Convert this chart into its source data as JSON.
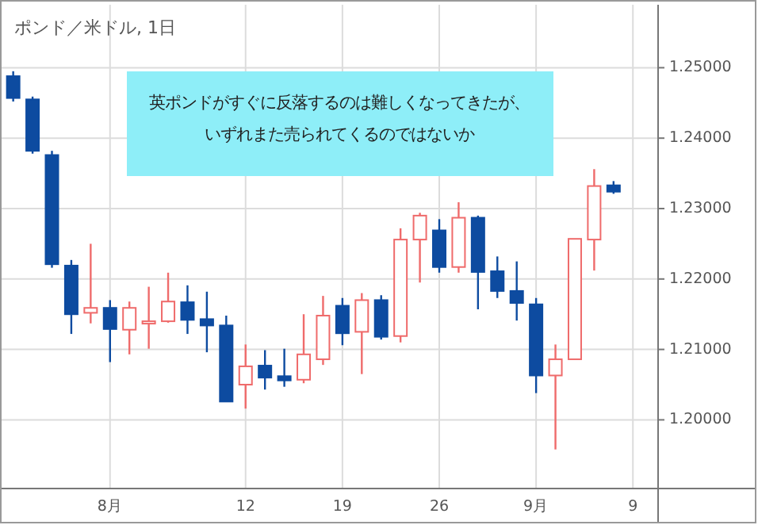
{
  "chart_data": {
    "type": "candlestick",
    "title": "ポンド／米ドル, 1日",
    "categories": [
      null,
      null,
      null,
      null,
      null,
      "8月",
      null,
      null,
      null,
      null,
      null,
      null,
      "12",
      null,
      null,
      null,
      null,
      "19",
      null,
      null,
      null,
      null,
      "26",
      null,
      null,
      null,
      null,
      "9月",
      null,
      null,
      null,
      null,
      "9"
    ],
    "ohlc": [
      [
        1.2488,
        1.2495,
        1.2452,
        1.2457
      ],
      [
        1.2455,
        1.2459,
        1.2378,
        1.2382
      ],
      [
        1.2376,
        1.2382,
        1.2216,
        1.2221
      ],
      [
        1.2219,
        1.2227,
        1.2122,
        1.215
      ],
      [
        1.2152,
        1.225,
        1.2137,
        1.2159
      ],
      [
        1.2159,
        1.217,
        1.2082,
        1.2129
      ],
      [
        1.2128,
        1.2168,
        1.2093,
        1.2159
      ],
      [
        1.2139,
        1.2189,
        1.2101,
        1.214
      ],
      [
        1.214,
        1.2209,
        1.2138,
        1.2168
      ],
      [
        1.2167,
        1.2191,
        1.2122,
        1.2142
      ],
      [
        1.2143,
        1.2182,
        1.2096,
        1.2134
      ],
      [
        1.2134,
        1.2148,
        1.2026,
        1.2026
      ],
      [
        1.205,
        1.2107,
        1.2016,
        1.2076
      ],
      [
        1.2077,
        1.2099,
        1.2043,
        1.206
      ],
      [
        1.2062,
        1.2101,
        1.2047,
        1.2056
      ],
      [
        1.2057,
        1.215,
        1.2052,
        1.2093
      ],
      [
        1.2086,
        1.2176,
        1.2078,
        1.2148
      ],
      [
        1.2162,
        1.2173,
        1.2106,
        1.2123
      ],
      [
        1.2125,
        1.218,
        1.2065,
        1.217
      ],
      [
        1.217,
        1.2177,
        1.2114,
        1.2118
      ],
      [
        1.2119,
        1.2272,
        1.211,
        1.2256
      ],
      [
        1.2256,
        1.2294,
        1.2195,
        1.229
      ],
      [
        1.2269,
        1.2285,
        1.2209,
        1.2217
      ],
      [
        1.2217,
        1.2309,
        1.2209,
        1.2287
      ],
      [
        1.2287,
        1.229,
        1.2157,
        1.221
      ],
      [
        1.2211,
        1.2232,
        1.2173,
        1.2183
      ],
      [
        1.2183,
        1.2225,
        1.2141,
        1.2166
      ],
      [
        1.2164,
        1.2173,
        1.2038,
        1.2063
      ],
      [
        1.2063,
        1.2107,
        1.1958,
        1.2086
      ],
      [
        1.2086,
        1.2257,
        1.2086,
        1.2257
      ],
      [
        1.2256,
        1.2356,
        1.2212,
        1.2332
      ],
      [
        1.2333,
        1.2339,
        1.2321,
        1.2324
      ],
      null
    ],
    "colors": [
      "#0d4ba0",
      "#0d4ba0",
      "#0d4ba0",
      "#0d4ba0",
      "#ef6b6b",
      "#0d4ba0",
      "#ef6b6b",
      "#ef6b6b",
      "#ef6b6b",
      "#0d4ba0",
      "#0d4ba0",
      "#0d4ba0",
      "#ef6b6b",
      "#0d4ba0",
      "#0d4ba0",
      "#ef6b6b",
      "#ef6b6b",
      "#0d4ba0",
      "#ef6b6b",
      "#0d4ba0",
      "#ef6b6b",
      "#ef6b6b",
      "#0d4ba0",
      "#ef6b6b",
      "#0d4ba0",
      "#0d4ba0",
      "#0d4ba0",
      "#0d4ba0",
      "#ef6b6b",
      "#ef6b6b",
      "#ef6b6b",
      "#0d4ba0",
      null
    ],
    "ylim": [
      1.19025,
      1.25894
    ],
    "yticks": [
      {
        "value": 1.2,
        "label": "1.20000"
      },
      {
        "value": 1.21,
        "label": "1.21000"
      },
      {
        "value": 1.22,
        "label": "1.22000"
      },
      {
        "value": 1.23,
        "label": "1.23000"
      },
      {
        "value": 1.24,
        "label": "1.24000"
      },
      {
        "value": 1.25,
        "label": "1.25000"
      }
    ],
    "grid": true,
    "annotations": [
      "英ポンドがすぐに反落するのは難しくなってきたが、いずれまた売られてくるのではないか"
    ]
  }
}
